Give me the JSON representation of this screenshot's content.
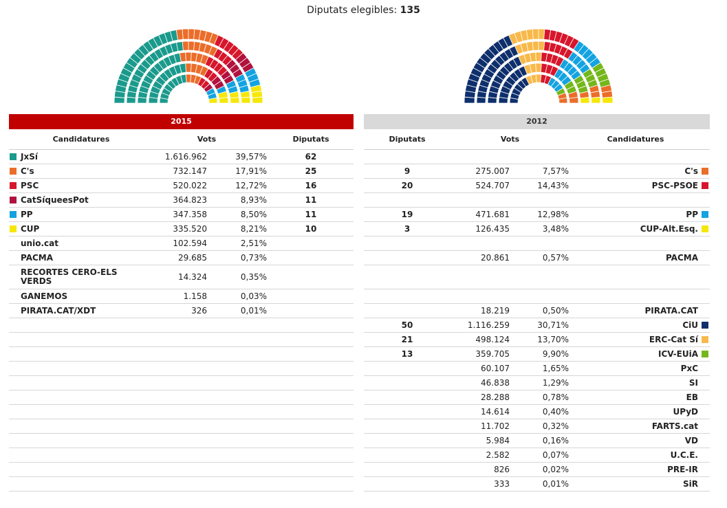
{
  "header": {
    "label": "Diputats elegibles:",
    "value": "135"
  },
  "chart_data": [
    {
      "type": "hemicycle",
      "title": "2015",
      "total_seats": 135,
      "parties": [
        {
          "name": "JxSí",
          "seats": 62,
          "color": "#1a9a8c"
        },
        {
          "name": "C's",
          "seats": 25,
          "color": "#eb6d2a"
        },
        {
          "name": "PSC",
          "seats": 16,
          "color": "#d7162b"
        },
        {
          "name": "CatSíqueesPot",
          "seats": 11,
          "color": "#b0123d"
        },
        {
          "name": "PP",
          "seats": 11,
          "color": "#13a3e0"
        },
        {
          "name": "CUP",
          "seats": 10,
          "color": "#f5e70a"
        }
      ]
    },
    {
      "type": "hemicycle",
      "title": "2012",
      "total_seats": 135,
      "parties": [
        {
          "name": "CiU",
          "seats": 50,
          "color": "#0e2f6c"
        },
        {
          "name": "ERC-Cat Sí",
          "seats": 21,
          "color": "#f8b94a"
        },
        {
          "name": "PSC-PSOE",
          "seats": 20,
          "color": "#d7162b"
        },
        {
          "name": "PP",
          "seats": 19,
          "color": "#13a3e0"
        },
        {
          "name": "ICV-EUiA",
          "seats": 13,
          "color": "#74b71b"
        },
        {
          "name": "C's",
          "seats": 9,
          "color": "#eb6d2a"
        },
        {
          "name": "CUP-Alt.Esq.",
          "seats": 3,
          "color": "#f5e70a"
        }
      ]
    }
  ],
  "left": {
    "year": "2015",
    "headers": {
      "name": "Candidatures",
      "votes": "Vots",
      "seats": "Diputats"
    },
    "rows": [
      {
        "name": "JxSí",
        "votes": "1.616.962",
        "pct": "39,57%",
        "seats": "62",
        "color": "#1a9a8c"
      },
      {
        "name": "C's",
        "votes": "732.147",
        "pct": "17,91%",
        "seats": "25",
        "color": "#eb6d2a"
      },
      {
        "name": "PSC",
        "votes": "520.022",
        "pct": "12,72%",
        "seats": "16",
        "color": "#d7162b"
      },
      {
        "name": "CatSíqueesPot",
        "votes": "364.823",
        "pct": "8,93%",
        "seats": "11",
        "color": "#b0123d"
      },
      {
        "name": "PP",
        "votes": "347.358",
        "pct": "8,50%",
        "seats": "11",
        "color": "#13a3e0"
      },
      {
        "name": "CUP",
        "votes": "335.520",
        "pct": "8,21%",
        "seats": "10",
        "color": "#f5e70a"
      },
      {
        "name": "unio.cat",
        "votes": "102.594",
        "pct": "2,51%",
        "seats": "",
        "color": ""
      },
      {
        "name": "PACMA",
        "votes": "29.685",
        "pct": "0,73%",
        "seats": "",
        "color": ""
      },
      {
        "name": "RECORTES CERO-ELS VERDS",
        "votes": "14.324",
        "pct": "0,35%",
        "seats": "",
        "color": "",
        "tall": true
      },
      {
        "name": "GANEMOS",
        "votes": "1.158",
        "pct": "0,03%",
        "seats": "",
        "color": ""
      },
      {
        "name": "PIRATA.CAT/XDT",
        "votes": "326",
        "pct": "0,01%",
        "seats": "",
        "color": ""
      },
      {
        "name": "",
        "votes": "",
        "pct": "",
        "seats": "",
        "color": ""
      },
      {
        "name": "",
        "votes": "",
        "pct": "",
        "seats": "",
        "color": ""
      },
      {
        "name": "",
        "votes": "",
        "pct": "",
        "seats": "",
        "color": ""
      },
      {
        "name": "",
        "votes": "",
        "pct": "",
        "seats": "",
        "color": ""
      },
      {
        "name": "",
        "votes": "",
        "pct": "",
        "seats": "",
        "color": ""
      },
      {
        "name": "",
        "votes": "",
        "pct": "",
        "seats": "",
        "color": ""
      },
      {
        "name": "",
        "votes": "",
        "pct": "",
        "seats": "",
        "color": ""
      },
      {
        "name": "",
        "votes": "",
        "pct": "",
        "seats": "",
        "color": ""
      },
      {
        "name": "",
        "votes": "",
        "pct": "",
        "seats": "",
        "color": ""
      },
      {
        "name": "",
        "votes": "",
        "pct": "",
        "seats": "",
        "color": ""
      },
      {
        "name": "",
        "votes": "",
        "pct": "",
        "seats": "",
        "color": ""
      },
      {
        "name": "",
        "votes": "",
        "pct": "",
        "seats": "",
        "color": ""
      }
    ]
  },
  "right": {
    "year": "2012",
    "headers": {
      "seats": "Diputats",
      "votes": "Vots",
      "name": "Candidatures"
    },
    "rows": [
      {
        "name": "",
        "votes": "",
        "pct": "",
        "seats": "",
        "color": ""
      },
      {
        "name": "C's",
        "votes": "275.007",
        "pct": "7,57%",
        "seats": "9",
        "color": "#eb6d2a"
      },
      {
        "name": "PSC-PSOE",
        "votes": "524.707",
        "pct": "14,43%",
        "seats": "20",
        "color": "#d7162b"
      },
      {
        "name": "",
        "votes": "",
        "pct": "",
        "seats": "",
        "color": ""
      },
      {
        "name": "PP",
        "votes": "471.681",
        "pct": "12,98%",
        "seats": "19",
        "color": "#13a3e0"
      },
      {
        "name": "CUP-Alt.Esq.",
        "votes": "126.435",
        "pct": "3,48%",
        "seats": "3",
        "color": "#f5e70a"
      },
      {
        "name": "",
        "votes": "",
        "pct": "",
        "seats": "",
        "color": ""
      },
      {
        "name": "PACMA",
        "votes": "20.861",
        "pct": "0,57%",
        "seats": "",
        "color": ""
      },
      {
        "name": "",
        "votes": "",
        "pct": "",
        "seats": "",
        "color": "",
        "tall": true
      },
      {
        "name": "",
        "votes": "",
        "pct": "",
        "seats": "",
        "color": ""
      },
      {
        "name": "PIRATA.CAT",
        "votes": "18.219",
        "pct": "0,50%",
        "seats": "",
        "color": ""
      },
      {
        "name": "CiU",
        "votes": "1.116.259",
        "pct": "30,71%",
        "seats": "50",
        "color": "#0e2f6c"
      },
      {
        "name": "ERC-Cat Sí",
        "votes": "498.124",
        "pct": "13,70%",
        "seats": "21",
        "color": "#f8b94a"
      },
      {
        "name": "ICV-EUiA",
        "votes": "359.705",
        "pct": "9,90%",
        "seats": "13",
        "color": "#74b71b"
      },
      {
        "name": "PxC",
        "votes": "60.107",
        "pct": "1,65%",
        "seats": "",
        "color": ""
      },
      {
        "name": "SI",
        "votes": "46.838",
        "pct": "1,29%",
        "seats": "",
        "color": ""
      },
      {
        "name": "EB",
        "votes": "28.288",
        "pct": "0,78%",
        "seats": "",
        "color": ""
      },
      {
        "name": "UPyD",
        "votes": "14.614",
        "pct": "0,40%",
        "seats": "",
        "color": ""
      },
      {
        "name": "FARTS.cat",
        "votes": "11.702",
        "pct": "0,32%",
        "seats": "",
        "color": ""
      },
      {
        "name": "VD",
        "votes": "5.984",
        "pct": "0,16%",
        "seats": "",
        "color": ""
      },
      {
        "name": "U.C.E.",
        "votes": "2.582",
        "pct": "0,07%",
        "seats": "",
        "color": ""
      },
      {
        "name": "PRE-IR",
        "votes": "826",
        "pct": "0,02%",
        "seats": "",
        "color": ""
      },
      {
        "name": "SiR",
        "votes": "333",
        "pct": "0,01%",
        "seats": "",
        "color": ""
      }
    ]
  }
}
